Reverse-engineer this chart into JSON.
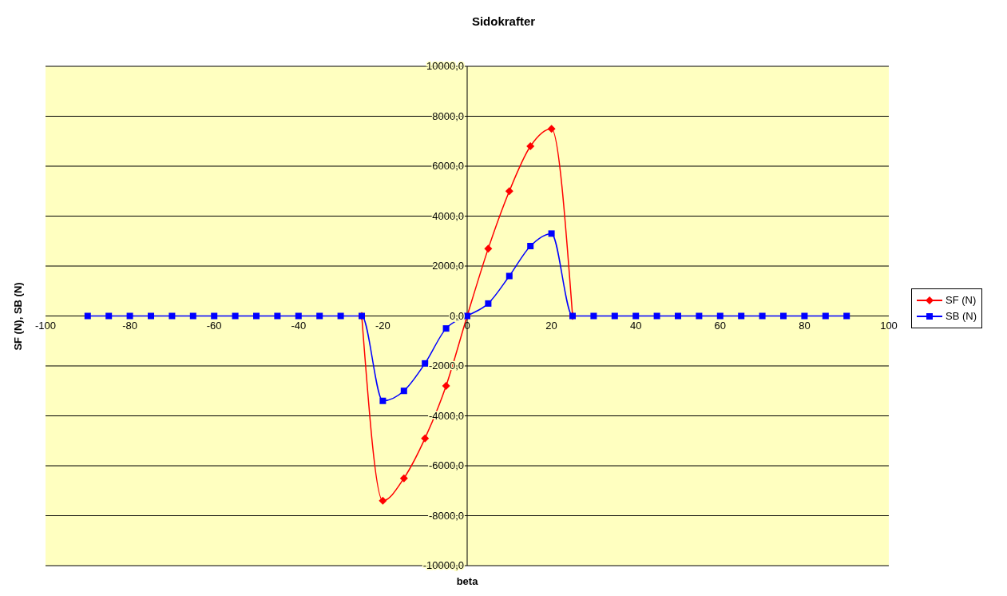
{
  "chart_data": {
    "type": "line",
    "title": "Sidokrafter",
    "xlabel": "beta",
    "ylabel": "SF (N), SB (N)",
    "x": [
      -90,
      -85,
      -80,
      -75,
      -70,
      -65,
      -60,
      -55,
      -50,
      -45,
      -40,
      -35,
      -30,
      -25,
      -20,
      -15,
      -10,
      -5,
      0,
      5,
      10,
      15,
      20,
      25,
      30,
      35,
      40,
      45,
      50,
      55,
      60,
      65,
      70,
      75,
      80,
      85,
      90
    ],
    "series": [
      {
        "name": "SF (N)",
        "color": "#ff0000",
        "marker": "diamond",
        "values": [
          null,
          null,
          null,
          null,
          null,
          null,
          null,
          null,
          null,
          null,
          null,
          null,
          null,
          0,
          -7400,
          -6500,
          -4900,
          -2800,
          0,
          2700,
          5000,
          6800,
          7500,
          0,
          null,
          null,
          null,
          null,
          null,
          null,
          null,
          null,
          null,
          null,
          null,
          null,
          null
        ]
      },
      {
        "name": "SB (N)",
        "color": "#0000ff",
        "marker": "square",
        "values": [
          0,
          0,
          0,
          0,
          0,
          0,
          0,
          0,
          0,
          0,
          0,
          0,
          0,
          0,
          -3400,
          -3000,
          -1900,
          -500,
          0,
          500,
          1600,
          2800,
          3300,
          0,
          0,
          0,
          0,
          0,
          0,
          0,
          0,
          0,
          0,
          0,
          0,
          0,
          0
        ]
      }
    ],
    "xlim": [
      -100,
      100
    ],
    "xticks": [
      -100,
      -80,
      -60,
      -40,
      -20,
      0,
      20,
      40,
      60,
      80,
      100
    ],
    "ylim": [
      -10000,
      10000
    ],
    "yticks": [
      {
        "value": -10000,
        "label": "-10000,0"
      },
      {
        "value": -8000,
        "label": "-8000,0"
      },
      {
        "value": -6000,
        "label": "-6000,0"
      },
      {
        "value": -4000,
        "label": "-4000,0"
      },
      {
        "value": -2000,
        "label": "-2000,0"
      },
      {
        "value": 0,
        "label": "0,0"
      },
      {
        "value": 2000,
        "label": "2000,0"
      },
      {
        "value": 4000,
        "label": "4000,0"
      },
      {
        "value": 6000,
        "label": "6000,0"
      },
      {
        "value": 8000,
        "label": "8000,0"
      },
      {
        "value": 10000,
        "label": "10000,0"
      }
    ],
    "grid": "y",
    "legend": "right"
  }
}
